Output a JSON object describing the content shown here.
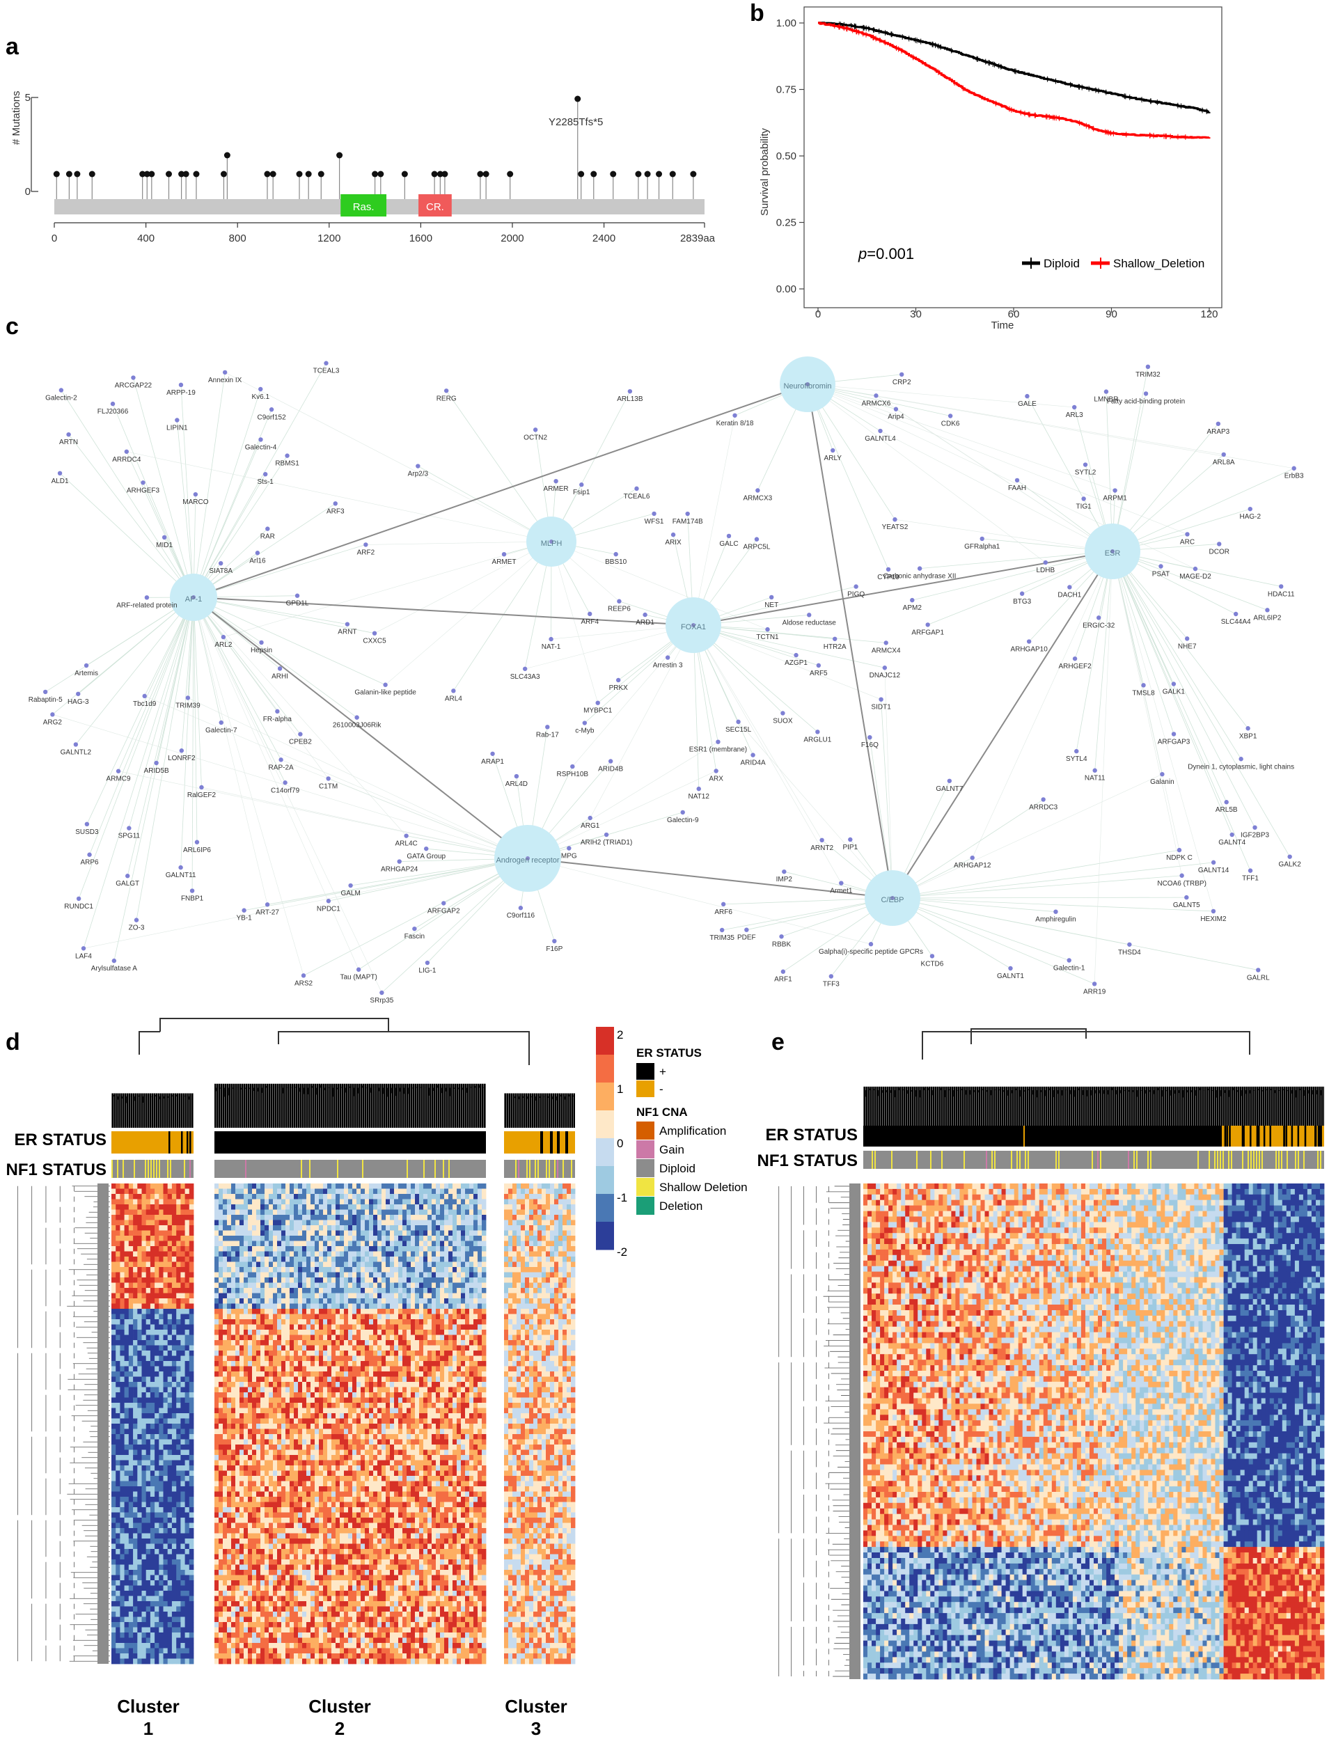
{
  "panels": {
    "a": "a",
    "b": "b",
    "c": "c",
    "d": "d",
    "e": "e"
  },
  "lollipop": {
    "ylabel": "# Mutations",
    "y_ticks": [
      "0",
      "5"
    ],
    "x_ticks": [
      "0",
      "400",
      "800",
      "1200",
      "1600",
      "2000",
      "2400",
      "2839aa"
    ],
    "x_values": [
      0,
      400,
      800,
      1200,
      1600,
      2000,
      2400,
      2839
    ],
    "annotation": "Y2285Tfs*5",
    "domains": [
      {
        "label": "Ras.",
        "start": 1250,
        "end": 1450,
        "color": "#2ecc1f"
      },
      {
        "label": "CR.",
        "start": 1590,
        "end": 1735,
        "color": "#f05a5a"
      }
    ],
    "mutations": [
      {
        "pos": 10,
        "count": 1
      },
      {
        "pos": 65,
        "count": 1
      },
      {
        "pos": 100,
        "count": 1
      },
      {
        "pos": 165,
        "count": 1
      },
      {
        "pos": 385,
        "count": 1
      },
      {
        "pos": 405,
        "count": 1
      },
      {
        "pos": 425,
        "count": 1
      },
      {
        "pos": 500,
        "count": 1
      },
      {
        "pos": 555,
        "count": 1
      },
      {
        "pos": 575,
        "count": 1
      },
      {
        "pos": 620,
        "count": 1
      },
      {
        "pos": 740,
        "count": 1
      },
      {
        "pos": 755,
        "count": 2
      },
      {
        "pos": 930,
        "count": 1
      },
      {
        "pos": 955,
        "count": 1
      },
      {
        "pos": 1070,
        "count": 1
      },
      {
        "pos": 1110,
        "count": 1
      },
      {
        "pos": 1165,
        "count": 1
      },
      {
        "pos": 1245,
        "count": 2
      },
      {
        "pos": 1400,
        "count": 1
      },
      {
        "pos": 1425,
        "count": 1
      },
      {
        "pos": 1530,
        "count": 1
      },
      {
        "pos": 1660,
        "count": 1
      },
      {
        "pos": 1685,
        "count": 1
      },
      {
        "pos": 1705,
        "count": 1
      },
      {
        "pos": 1860,
        "count": 1
      },
      {
        "pos": 1885,
        "count": 1
      },
      {
        "pos": 1990,
        "count": 1
      },
      {
        "pos": 2285,
        "count": 5
      },
      {
        "pos": 2300,
        "count": 1
      },
      {
        "pos": 2355,
        "count": 1
      },
      {
        "pos": 2440,
        "count": 1
      },
      {
        "pos": 2550,
        "count": 1
      },
      {
        "pos": 2590,
        "count": 1
      },
      {
        "pos": 2640,
        "count": 1
      },
      {
        "pos": 2700,
        "count": 1
      },
      {
        "pos": 2790,
        "count": 1
      }
    ]
  },
  "chart_data": {
    "type": "line",
    "title": "",
    "xlabel": "Time",
    "ylabel": "Survival probability",
    "xlim": [
      0,
      120
    ],
    "ylim": [
      0,
      1
    ],
    "x_ticks": [
      "0",
      "30",
      "60",
      "90",
      "120"
    ],
    "y_ticks": [
      "0.00",
      "0.25",
      "0.50",
      "0.75",
      "1.00"
    ],
    "annotation_p": "=0.001",
    "annotation_p_prefix": "p",
    "legend_position": "bottom-right",
    "series": [
      {
        "name": "Diploid",
        "color": "#000000",
        "x": [
          0,
          5,
          10,
          15,
          20,
          25,
          30,
          35,
          40,
          45,
          50,
          55,
          60,
          65,
          70,
          75,
          80,
          85,
          90,
          95,
          100,
          105,
          110,
          115,
          120
        ],
        "values": [
          1.0,
          0.997,
          0.99,
          0.98,
          0.965,
          0.95,
          0.935,
          0.92,
          0.9,
          0.88,
          0.86,
          0.84,
          0.82,
          0.805,
          0.79,
          0.775,
          0.76,
          0.748,
          0.735,
          0.722,
          0.71,
          0.7,
          0.69,
          0.68,
          0.665
        ]
      },
      {
        "name": "Shallow_Deletion",
        "color": "#ff0000",
        "x": [
          0,
          5,
          10,
          15,
          20,
          25,
          30,
          35,
          40,
          45,
          50,
          55,
          60,
          65,
          70,
          75,
          80,
          85,
          90,
          95,
          100,
          105,
          110,
          115,
          120
        ],
        "values": [
          1.0,
          0.99,
          0.975,
          0.955,
          0.93,
          0.9,
          0.865,
          0.83,
          0.79,
          0.75,
          0.72,
          0.695,
          0.67,
          0.655,
          0.648,
          0.64,
          0.625,
          0.6,
          0.585,
          0.58,
          0.578,
          0.575,
          0.572,
          0.57,
          0.57
        ]
      }
    ]
  },
  "network": {
    "hubs": [
      "AP-1",
      "MLPH",
      "FOXA1",
      "Neurofibromin",
      "ESR",
      "Androgen receptor",
      "C/EBP"
    ],
    "nodes": [
      "YEATS2",
      "SPG11",
      "Arl16",
      "GALNT11",
      "ARC",
      "ARCGAP22",
      "Fascin",
      "TCEAL6",
      "RSPH10B",
      "ERGIC-32",
      "SLC44A4",
      "GALC",
      "ARL2",
      "ARL13B",
      "2610003J06Rik",
      "ARL6IP2",
      "ARL4C",
      "CPEB2",
      "ARL4D",
      "C14orf79",
      "ARPM1",
      "Kv6.1",
      "BBS10",
      "GALNT14",
      "MAGE-D2",
      "RBMS1",
      "GALNT1",
      "NAT11",
      "C1TM",
      "ARIH2 (TRIAD1)",
      "CRP2",
      "IMP2",
      "TCTN1",
      "Arp2/3",
      "ARP6",
      "ARL6IP6",
      "Galpha(i)-specific peptide GPCRs",
      "Aldose reductase",
      "ARTN",
      "Sts-1",
      "TRIM39",
      "GFRalpha1",
      "F16Q",
      "C9orf152",
      "Galanin-like peptide",
      "ZO-3",
      "NPDC1",
      "Galectin-2",
      "Galanin",
      "GALK2",
      "GALRL",
      "RBBK",
      "ARHGAP12",
      "GALE",
      "ARIX",
      "ARPC5L",
      "ARL8A",
      "ARID4A",
      "KCTD6",
      "PSAT",
      "REEP6",
      "ARGLU1",
      "TFF1",
      "ARMER",
      "ARS2",
      "Dynein 1, cytoplasmic, light chains",
      "GALGT",
      "ARAP3",
      "ARX",
      "NET",
      "PRKX",
      "ARPP-19",
      "RAP-2A",
      "NAT12",
      "ARF5",
      "GALNT7",
      "ARMC9",
      "ARMCX4",
      "F16P",
      "HTR2A",
      "ARMCX6",
      "GPD1L",
      "ARHGEF2",
      "GALNTL2",
      "ARG2",
      "GALNT5",
      "WFS1",
      "ARFGAP2",
      "SIDT1",
      "PIP1",
      "SUOX",
      "ARMCX3",
      "SEC15L",
      "ARL4",
      "SYTL4",
      "ARHGAP10",
      "ARF2",
      "GALK1",
      "TCEAL3",
      "RUNDC1",
      "Armet1",
      "NHE7",
      "ARFGAP3",
      "ARFGAP1",
      "ART-27",
      "ARID4B",
      "LIPIN1",
      "C9orf116",
      "LAF4",
      "ARF4",
      "Rabaptin-5",
      "ARF-related protein",
      "ARRDC4",
      "ARF1",
      "ARF6",
      "ARHGAP24",
      "Arip4",
      "ARF3",
      "ARAP1",
      "DCOR",
      "MYBPC1",
      "TMSL8",
      "BTG3",
      "Galectin-4",
      "ARG1",
      "Fatty acid-binding protein",
      "AZGP1",
      "Amphiregulin",
      "Keratin 8/18",
      "XBP1",
      "ARMET",
      "ARD1",
      "NAT-1",
      "Hepsin",
      "YB-1",
      "PDEF",
      "NCOA6 (TRBP)",
      "CYP19",
      "MID1",
      "HAG-2",
      "Tbc1d9",
      "SIAT8A",
      "DACH1",
      "HAG-3",
      "Tau (MAPT)",
      "GALNT4",
      "FLJ20366",
      "MPG",
      "RalGEF2",
      "ARNT",
      "ARL5B",
      "RERG",
      "ESR1 (membrane)",
      "RAR",
      "Arrestin 3",
      "Galectin-7",
      "LDHB",
      "FAM174B",
      "TRIM32",
      "TFF3",
      "CXXC5",
      "Galectin-1",
      "Galectin-9",
      "GATA Group",
      "ARNT2",
      "THSD4",
      "SYTL2",
      "FR-alpha",
      "NDPK C",
      "FAAH",
      "SUSD3",
      "TIG1",
      "Annexin IX",
      "PIGQ",
      "Arylsulfatase A",
      "Artemis",
      "HEXIM2",
      "c-Myb",
      "ALD1",
      "MARCO",
      "SLC43A3",
      "ARHI",
      "ARLY",
      "LMNBR",
      "ARR19",
      "GALM",
      "TRIM35",
      "CDK6",
      "SRrp35",
      "IGF2BP3",
      "Carbonic anhydrase XII",
      "LIG-1",
      "GALNTL4",
      "ARID5B",
      "Rab-17",
      "OCTN2",
      "DNAJC12",
      "HDAC11",
      "FNBP1",
      "ARHGEF3",
      "ARL3",
      "LONRF2",
      "APM2",
      "Fsip1",
      "ErbB3",
      "ARRDC3"
    ]
  },
  "heatmap_d": {
    "er_label": "ER STATUS",
    "nf1_label": "NF1 STATUS",
    "clusters": [
      {
        "label": "Cluster",
        "number": "1"
      },
      {
        "label": "Cluster",
        "number": "2"
      },
      {
        "label": "Cluster",
        "number": "3"
      }
    ]
  },
  "heatmap_e": {
    "er_label": "ER STATUS",
    "nf1_label": "NF1 STATUS"
  },
  "legend": {
    "scale_ticks": [
      "2",
      "1",
      "0",
      "-1",
      "-2"
    ],
    "scale_colors": [
      "#d73027",
      "#f46d43",
      "#fdae61",
      "#fee8c8",
      "#c6dbef",
      "#9ecae1",
      "#4a78b4",
      "#2c3e99"
    ],
    "er_title": "ER STATUS",
    "er_items": [
      {
        "label": "+",
        "color": "#000000"
      },
      {
        "label": "-",
        "color": "#e8a000"
      }
    ],
    "nf1_title": "NF1 CNA",
    "nf1_items": [
      {
        "label": "Amplification",
        "color": "#d55e00"
      },
      {
        "label": "Gain",
        "color": "#cc79a7"
      },
      {
        "label": "Diploid",
        "color": "#8c8c8c"
      },
      {
        "label": "Shallow Deletion",
        "color": "#f0e442"
      },
      {
        "label": "Deletion",
        "color": "#1b9e77"
      }
    ]
  }
}
